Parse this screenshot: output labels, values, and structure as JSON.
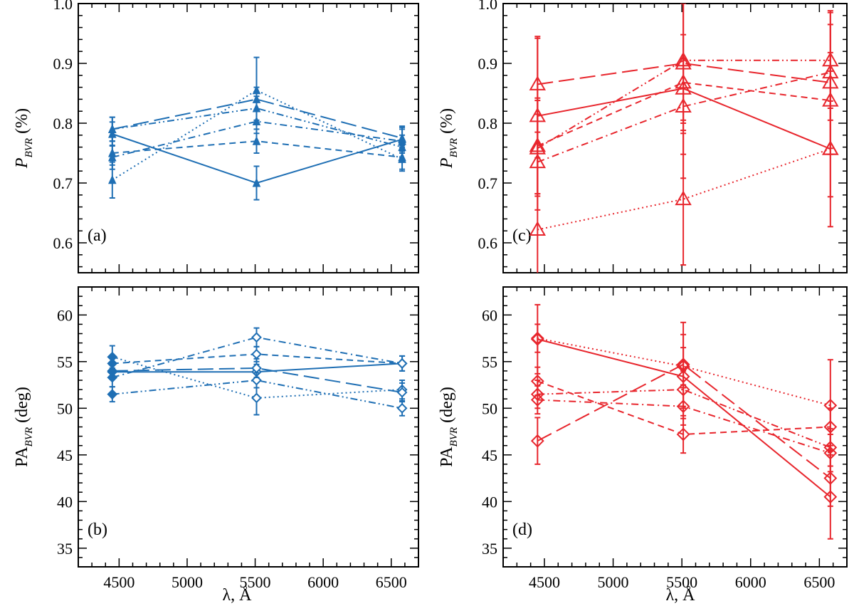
{
  "figure": {
    "xlabel": "λ, Å",
    "colors": {
      "blue": "#1f6fb4",
      "red": "#e8262d",
      "axis": "#000000"
    }
  },
  "chart_data": [
    {
      "id": "a",
      "type": "line",
      "panel_label": "(a)",
      "ylabel_main": "P",
      "ylabel_sub": "BVR",
      "ylabel_suffix": " (%)",
      "ylabel_italic": true,
      "color": "blue",
      "marker": "triangle-filled",
      "xlim": [
        4200,
        6700
      ],
      "ylim": [
        0.55,
        1.0
      ],
      "xticks": [
        4500,
        5000,
        5500,
        6000,
        6500
      ],
      "yticks": [
        0.6,
        0.7,
        0.8,
        0.9,
        1.0
      ],
      "ytick_labels": [
        "0.6",
        "0.7",
        "0.8",
        "0.9",
        "1.0"
      ],
      "show_xtick_labels": false,
      "x": [
        4450,
        5510,
        6580
      ],
      "series": [
        {
          "name": "solid",
          "dash": "solid",
          "values": [
            0.782,
            0.7,
            0.773
          ],
          "errors": [
            0.02,
            0.028,
            0.02
          ]
        },
        {
          "name": "dashed",
          "dash": "dashed",
          "values": [
            0.75,
            0.77,
            0.743
          ],
          "errors": [
            0.02,
            0.02,
            0.02
          ]
        },
        {
          "name": "dotted",
          "dash": "dotted",
          "values": [
            0.705,
            0.855,
            0.74
          ],
          "errors": [
            0.03,
            0.055,
            0.02
          ]
        },
        {
          "name": "dash-dot",
          "dash": "dashdot",
          "values": [
            0.743,
            0.803,
            0.77
          ],
          "errors": [
            0.02,
            0.02,
            0.02
          ]
        },
        {
          "name": "dash-dot-dot",
          "dash": "dashdotdot",
          "values": [
            0.79,
            0.825,
            0.76
          ],
          "errors": [
            0.02,
            0.02,
            0.02
          ]
        },
        {
          "name": "long-dashed",
          "dash": "longdash",
          "values": [
            0.79,
            0.84,
            0.775
          ],
          "errors": [
            0.02,
            0.02,
            0.02
          ]
        }
      ]
    },
    {
      "id": "b",
      "type": "line",
      "panel_label": "(b)",
      "ylabel_main": "PA",
      "ylabel_sub": "BVR",
      "ylabel_suffix": " (deg)",
      "ylabel_italic": false,
      "color": "blue",
      "marker": "diamond",
      "xlim": [
        4200,
        6700
      ],
      "ylim": [
        33,
        63
      ],
      "xticks": [
        4500,
        5000,
        5500,
        6000,
        6500
      ],
      "xtick_labels": [
        "4500",
        "5000",
        "5500",
        "6000",
        "6500"
      ],
      "yticks": [
        35,
        40,
        45,
        50,
        55,
        60
      ],
      "ytick_labels": [
        "35",
        "40",
        "45",
        "50",
        "55",
        "60"
      ],
      "show_xtick_labels": true,
      "x": [
        4450,
        5510,
        6580
      ],
      "series": [
        {
          "name": "solid",
          "dash": "solid",
          "values": [
            53.9,
            53.9,
            54.8
          ],
          "errors": [
            0.8,
            0.8,
            0.8
          ]
        },
        {
          "name": "dashed",
          "dash": "dashed",
          "values": [
            54.8,
            55.8,
            54.8
          ],
          "errors": [
            0.8,
            0.8,
            0.8
          ]
        },
        {
          "name": "dotted",
          "dash": "dotted",
          "values": [
            55.5,
            51.1,
            52.0
          ],
          "errors": [
            1.2,
            1.8,
            1.0
          ]
        },
        {
          "name": "dash-dot",
          "dash": "dashdot",
          "values": [
            53.3,
            57.6,
            54.8
          ],
          "errors": [
            1.0,
            1.0,
            0.8
          ]
        },
        {
          "name": "dash-dot-dot",
          "dash": "dashdotdot",
          "values": [
            51.5,
            53.0,
            50.0
          ],
          "errors": [
            0.8,
            0.8,
            0.8
          ]
        },
        {
          "name": "long-dashed",
          "dash": "longdash",
          "values": [
            54.0,
            54.3,
            51.7
          ],
          "errors": [
            0.8,
            1.0,
            1.0
          ]
        }
      ]
    },
    {
      "id": "c",
      "type": "line",
      "panel_label": "(c)",
      "ylabel_main": "P",
      "ylabel_sub": "BVR",
      "ylabel_suffix": " (%)",
      "ylabel_italic": true,
      "color": "red",
      "marker": "triangle-open",
      "xlim": [
        4200,
        6700
      ],
      "ylim": [
        0.55,
        1.0
      ],
      "xticks": [
        4500,
        5000,
        5500,
        6000,
        6500
      ],
      "yticks": [
        0.6,
        0.7,
        0.8,
        0.9,
        1.0
      ],
      "ytick_labels": [
        "0.6",
        "0.7",
        "0.8",
        "0.9",
        "1.0"
      ],
      "show_xtick_labels": false,
      "x": [
        4450,
        5510,
        6580
      ],
      "series": [
        {
          "name": "solid",
          "dash": "solid",
          "values": [
            0.812,
            0.858,
            0.757
          ],
          "errors": [
            0.13,
            0.15,
            0.13
          ]
        },
        {
          "name": "dashed",
          "dash": "dashed",
          "values": [
            0.762,
            0.868,
            0.838
          ],
          "errors": [
            0.08,
            0.08,
            0.08
          ]
        },
        {
          "name": "dotted",
          "dash": "dotted",
          "values": [
            0.622,
            0.673,
            0.757
          ],
          "errors": [
            0.12,
            0.11,
            0.08
          ]
        },
        {
          "name": "dash-dot",
          "dash": "dashdot",
          "values": [
            0.735,
            0.828,
            0.885
          ],
          "errors": [
            0.08,
            0.08,
            0.08
          ]
        },
        {
          "name": "dash-dot-dot",
          "dash": "dashdotdot",
          "values": [
            0.758,
            0.905,
            0.905
          ],
          "errors": [
            0.08,
            0.1,
            0.08
          ]
        },
        {
          "name": "long-dashed",
          "dash": "longdash",
          "values": [
            0.865,
            0.9,
            0.868
          ],
          "errors": [
            0.08,
            0.1,
            0.12
          ]
        }
      ]
    },
    {
      "id": "d",
      "type": "line",
      "panel_label": "(d)",
      "ylabel_main": "PA",
      "ylabel_sub": "BVR",
      "ylabel_suffix": " (deg)",
      "ylabel_italic": false,
      "color": "red",
      "marker": "diamond",
      "xlim": [
        4200,
        6700
      ],
      "ylim": [
        33,
        63
      ],
      "xticks": [
        4500,
        5000,
        5500,
        6000,
        6500
      ],
      "xtick_labels": [
        "4500",
        "5000",
        "5500",
        "6000",
        "6500"
      ],
      "yticks": [
        35,
        40,
        45,
        50,
        55,
        60
      ],
      "ytick_labels": [
        "35",
        "40",
        "45",
        "50",
        "55",
        "60"
      ],
      "show_xtick_labels": true,
      "x": [
        4450,
        5510,
        6580
      ],
      "series": [
        {
          "name": "solid",
          "dash": "solid",
          "values": [
            57.4,
            53.4,
            40.5
          ],
          "errors": [
            3.7,
            4.5,
            4.5
          ]
        },
        {
          "name": "dashed",
          "dash": "dashed",
          "values": [
            52.9,
            47.2,
            48.0
          ],
          "errors": [
            1.5,
            2.0,
            2.0
          ]
        },
        {
          "name": "dotted",
          "dash": "dotted",
          "values": [
            57.5,
            54.5,
            50.3
          ],
          "errors": [
            1.5,
            2.0,
            4.9
          ]
        },
        {
          "name": "dash-dot",
          "dash": "dashdot",
          "values": [
            50.9,
            50.2,
            45.2
          ],
          "errors": [
            1.5,
            2.0,
            2.0
          ]
        },
        {
          "name": "dash-dot-dot",
          "dash": "dashdotdot",
          "values": [
            51.5,
            52.0,
            45.8
          ],
          "errors": [
            1.5,
            2.0,
            2.0
          ]
        },
        {
          "name": "long-dashed",
          "dash": "longdash",
          "values": [
            46.5,
            54.7,
            42.5
          ],
          "errors": [
            2.5,
            4.5,
            3.0
          ]
        }
      ]
    }
  ]
}
